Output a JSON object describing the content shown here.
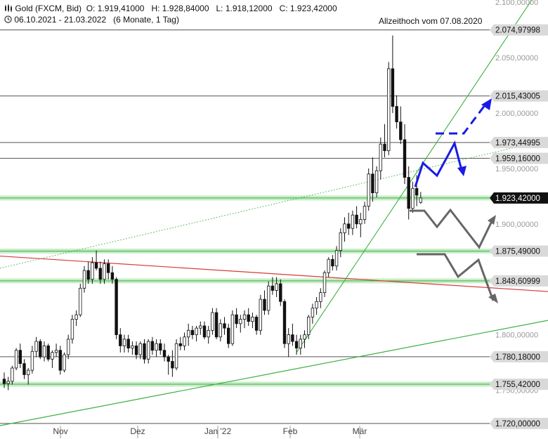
{
  "header": {
    "icon": "candlestick-icon",
    "instrument": "Gold (FXCM, Bid)",
    "ohlc": "O: 1.919,41000   H: 1.928,84000   L: 1.918,12000   C: 1.923,42000",
    "clock_icon": "clock-icon",
    "range": "06.10.2021 - 21.03.2022   (6 Monate, 1 Tag)"
  },
  "annotation": "Allzeithoch vom 07.08.2020",
  "colors": {
    "candle_up": "#ffffff",
    "candle_down": "#111111",
    "support_green": "#3cb043",
    "support_band": "#c8ecc8",
    "resistance_red": "#d63a3a",
    "projection_blue": "#1a1ae6",
    "projection_gray": "#666666",
    "label_box": "#d9d9d9",
    "current_box": "#111111"
  },
  "chart_data": {
    "type": "candlestick",
    "title": "Gold (FXCM, Bid)",
    "period": "06.10.2021 - 21.03.2022 (6 Monate, 1 Tag)",
    "x_labels": [
      "Nov",
      "Dez",
      "Jan '22",
      "Feb",
      "Mär"
    ],
    "y_ticks": [
      "2.100,00000",
      "2.050,00000",
      "2.000,00000",
      "1.950,00000",
      "1.900,00000",
      "1.800,00000",
      "1.750,00000"
    ],
    "ylim": [
      1718,
      2102
    ],
    "levels": [
      {
        "value": 2074.97998,
        "label": "2.074,97998",
        "kind": "resistance"
      },
      {
        "value": 2015.43005,
        "label": "2.015,43005",
        "kind": "resistance"
      },
      {
        "value": 1973.44995,
        "label": "1.973,44995",
        "kind": "resistance"
      },
      {
        "value": 1959.16,
        "label": "1.959,16000",
        "kind": "resistance"
      },
      {
        "value": 1875.49,
        "label": "1.875,49000",
        "kind": "support"
      },
      {
        "value": 1848.60999,
        "label": "1.848,60999",
        "kind": "support"
      },
      {
        "value": 1780.18,
        "label": "1.780,18000",
        "kind": "support"
      },
      {
        "value": 1755.42,
        "label": "1.755,42000",
        "kind": "support"
      },
      {
        "value": 1720.0,
        "label": "1.720,00000",
        "kind": "support"
      }
    ],
    "current_price": {
      "value": 1923.42,
      "label": "1.923,42000"
    },
    "ohlc": {
      "open": 1919.41,
      "high": 1928.84,
      "low": 1918.12,
      "close": 1923.42
    },
    "candles": [
      [
        1760,
        1766,
        1752,
        1756
      ],
      [
        1756,
        1762,
        1750,
        1758
      ],
      [
        1758,
        1772,
        1755,
        1770
      ],
      [
        1770,
        1788,
        1768,
        1786
      ],
      [
        1786,
        1792,
        1770,
        1774
      ],
      [
        1774,
        1778,
        1760,
        1764
      ],
      [
        1764,
        1770,
        1755,
        1768
      ],
      [
        1768,
        1790,
        1765,
        1785
      ],
      [
        1785,
        1798,
        1780,
        1794
      ],
      [
        1794,
        1796,
        1778,
        1780
      ],
      [
        1780,
        1794,
        1776,
        1790
      ],
      [
        1790,
        1792,
        1776,
        1778
      ],
      [
        1778,
        1786,
        1770,
        1784
      ],
      [
        1784,
        1792,
        1780,
        1786
      ],
      [
        1786,
        1790,
        1764,
        1768
      ],
      [
        1768,
        1784,
        1766,
        1782
      ],
      [
        1782,
        1800,
        1778,
        1796
      ],
      [
        1796,
        1818,
        1792,
        1814
      ],
      [
        1814,
        1822,
        1808,
        1818
      ],
      [
        1818,
        1846,
        1816,
        1842
      ],
      [
        1842,
        1862,
        1838,
        1858
      ],
      [
        1858,
        1866,
        1846,
        1850
      ],
      [
        1850,
        1870,
        1846,
        1865
      ],
      [
        1865,
        1876,
        1858,
        1860
      ],
      [
        1860,
        1866,
        1846,
        1850
      ],
      [
        1850,
        1868,
        1846,
        1864
      ],
      [
        1864,
        1868,
        1850,
        1856
      ],
      [
        1856,
        1862,
        1846,
        1850
      ],
      [
        1850,
        1852,
        1796,
        1800
      ],
      [
        1800,
        1806,
        1784,
        1790
      ],
      [
        1790,
        1800,
        1784,
        1796
      ],
      [
        1796,
        1800,
        1784,
        1788
      ],
      [
        1788,
        1794,
        1782,
        1790
      ],
      [
        1790,
        1794,
        1778,
        1782
      ],
      [
        1782,
        1794,
        1778,
        1792
      ],
      [
        1792,
        1796,
        1774,
        1778
      ],
      [
        1778,
        1796,
        1774,
        1794
      ],
      [
        1794,
        1798,
        1782,
        1786
      ],
      [
        1786,
        1796,
        1780,
        1792
      ],
      [
        1792,
        1796,
        1782,
        1786
      ],
      [
        1786,
        1792,
        1776,
        1780
      ],
      [
        1780,
        1782,
        1764,
        1776
      ],
      [
        1776,
        1786,
        1762,
        1770
      ],
      [
        1770,
        1796,
        1768,
        1792
      ],
      [
        1792,
        1798,
        1786,
        1790
      ],
      [
        1790,
        1802,
        1786,
        1798
      ],
      [
        1798,
        1810,
        1790,
        1804
      ],
      [
        1804,
        1808,
        1796,
        1800
      ],
      [
        1800,
        1808,
        1794,
        1806
      ],
      [
        1806,
        1812,
        1800,
        1808
      ],
      [
        1808,
        1812,
        1796,
        1798
      ],
      [
        1798,
        1808,
        1792,
        1804
      ],
      [
        1804,
        1824,
        1800,
        1820
      ],
      [
        1820,
        1824,
        1796,
        1798
      ],
      [
        1798,
        1814,
        1794,
        1810
      ],
      [
        1810,
        1816,
        1800,
        1806
      ],
      [
        1806,
        1810,
        1788,
        1792
      ],
      [
        1792,
        1822,
        1790,
        1818
      ],
      [
        1818,
        1824,
        1806,
        1810
      ],
      [
        1810,
        1818,
        1802,
        1814
      ],
      [
        1814,
        1822,
        1806,
        1818
      ],
      [
        1818,
        1824,
        1808,
        1812
      ],
      [
        1812,
        1820,
        1806,
        1816
      ],
      [
        1816,
        1818,
        1800,
        1804
      ],
      [
        1804,
        1836,
        1800,
        1832
      ],
      [
        1832,
        1840,
        1818,
        1822
      ],
      [
        1822,
        1848,
        1818,
        1844
      ],
      [
        1844,
        1852,
        1836,
        1840
      ],
      [
        1840,
        1852,
        1834,
        1846
      ],
      [
        1846,
        1850,
        1826,
        1830
      ],
      [
        1830,
        1832,
        1788,
        1792
      ],
      [
        1792,
        1806,
        1780,
        1800
      ],
      [
        1800,
        1810,
        1790,
        1794
      ],
      [
        1794,
        1800,
        1782,
        1788
      ],
      [
        1788,
        1800,
        1782,
        1796
      ],
      [
        1796,
        1804,
        1788,
        1800
      ],
      [
        1800,
        1818,
        1796,
        1816
      ],
      [
        1816,
        1828,
        1810,
        1824
      ],
      [
        1824,
        1834,
        1818,
        1830
      ],
      [
        1830,
        1842,
        1824,
        1838
      ],
      [
        1838,
        1858,
        1834,
        1856
      ],
      [
        1856,
        1870,
        1852,
        1868
      ],
      [
        1868,
        1872,
        1858,
        1862
      ],
      [
        1862,
        1880,
        1858,
        1876
      ],
      [
        1876,
        1896,
        1870,
        1892
      ],
      [
        1892,
        1906,
        1884,
        1900
      ],
      [
        1900,
        1910,
        1890,
        1896
      ],
      [
        1896,
        1912,
        1890,
        1908
      ],
      [
        1908,
        1916,
        1896,
        1900
      ],
      [
        1900,
        1910,
        1888,
        1904
      ],
      [
        1904,
        1920,
        1900,
        1916
      ],
      [
        1916,
        1950,
        1912,
        1945
      ],
      [
        1945,
        1960,
        1920,
        1928
      ],
      [
        1928,
        1952,
        1924,
        1948
      ],
      [
        1948,
        1978,
        1940,
        1972
      ],
      [
        1972,
        1990,
        1960,
        1966
      ],
      [
        1966,
        2046,
        1962,
        2040
      ],
      [
        2040,
        2070,
        2000,
        2006
      ],
      [
        2006,
        2016,
        1986,
        1992
      ],
      [
        1992,
        2006,
        1972,
        1976
      ],
      [
        1976,
        1990,
        1936,
        1942
      ],
      [
        1942,
        1952,
        1904,
        1914
      ],
      [
        1914,
        1938,
        1910,
        1932
      ],
      [
        1932,
        1944,
        1916,
        1926
      ],
      [
        1919.41,
        1928.84,
        1918.12,
        1923.42
      ]
    ]
  }
}
